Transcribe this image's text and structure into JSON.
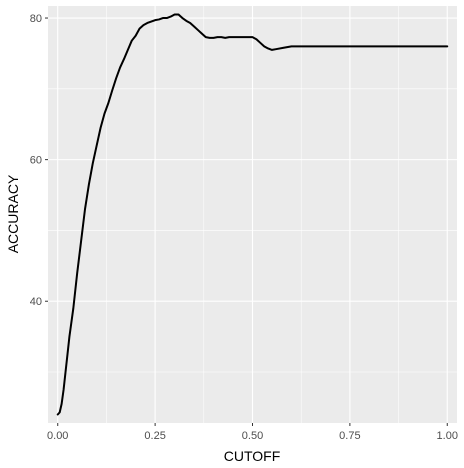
{
  "chart_data": {
    "type": "line",
    "title": "",
    "xlabel": "CUTOFF",
    "ylabel": "ACCURACY",
    "xlim": [
      -0.025,
      1.025
    ],
    "ylim": [
      22.8,
      81.7
    ],
    "x_ticks": [
      0.0,
      0.25,
      0.5,
      0.75,
      1.0
    ],
    "x_tick_labels": [
      "0.00",
      "0.25",
      "0.50",
      "0.75",
      "1.00"
    ],
    "y_ticks": [
      40,
      60,
      80
    ],
    "y_tick_labels": [
      "40",
      "60",
      "80"
    ],
    "grid": true,
    "legend": "none",
    "colors": {
      "panel_background": "#ebebeb",
      "grid_major": "#ffffff",
      "line": "#000000",
      "tick_label": "#4d4d4d",
      "axis_title": "#000000"
    },
    "series": [
      {
        "x": [
          0.0,
          0.005,
          0.01,
          0.015,
          0.02,
          0.025,
          0.03,
          0.04,
          0.05,
          0.06,
          0.07,
          0.08,
          0.09,
          0.1,
          0.11,
          0.12,
          0.13,
          0.14,
          0.15,
          0.16,
          0.17,
          0.18,
          0.19,
          0.2,
          0.21,
          0.22,
          0.23,
          0.24,
          0.25,
          0.26,
          0.27,
          0.28,
          0.29,
          0.3,
          0.31,
          0.32,
          0.33,
          0.34,
          0.35,
          0.36,
          0.37,
          0.38,
          0.39,
          0.4,
          0.41,
          0.42,
          0.43,
          0.44,
          0.45,
          0.46,
          0.47,
          0.48,
          0.49,
          0.5,
          0.51,
          0.52,
          0.53,
          0.54,
          0.55,
          0.56,
          0.58,
          0.6,
          0.62,
          0.64,
          0.66,
          0.68,
          0.7,
          0.72,
          0.74,
          0.76,
          0.78,
          0.8,
          0.82,
          0.84,
          0.86,
          0.88,
          0.9,
          0.95,
          1.0
        ],
        "values": [
          24.0,
          24.3,
          25.5,
          27.5,
          30.0,
          32.5,
          35.0,
          39.0,
          44.0,
          48.5,
          53.0,
          56.5,
          59.5,
          62.0,
          64.5,
          66.5,
          68.0,
          69.8,
          71.5,
          73.0,
          74.2,
          75.5,
          76.8,
          77.5,
          78.5,
          79.0,
          79.3,
          79.5,
          79.7,
          79.8,
          80.0,
          80.0,
          80.2,
          80.5,
          80.5,
          80.0,
          79.6,
          79.3,
          78.8,
          78.3,
          77.8,
          77.3,
          77.2,
          77.2,
          77.3,
          77.3,
          77.2,
          77.3,
          77.3,
          77.3,
          77.3,
          77.3,
          77.3,
          77.3,
          77.0,
          76.5,
          76.0,
          75.7,
          75.5,
          75.6,
          75.8,
          76.0,
          76.0,
          76.0,
          76.0,
          76.0,
          76.0,
          76.0,
          76.0,
          76.0,
          76.0,
          76.0,
          76.0,
          76.0,
          76.0,
          76.0,
          76.0,
          76.0,
          76.0
        ]
      }
    ]
  }
}
